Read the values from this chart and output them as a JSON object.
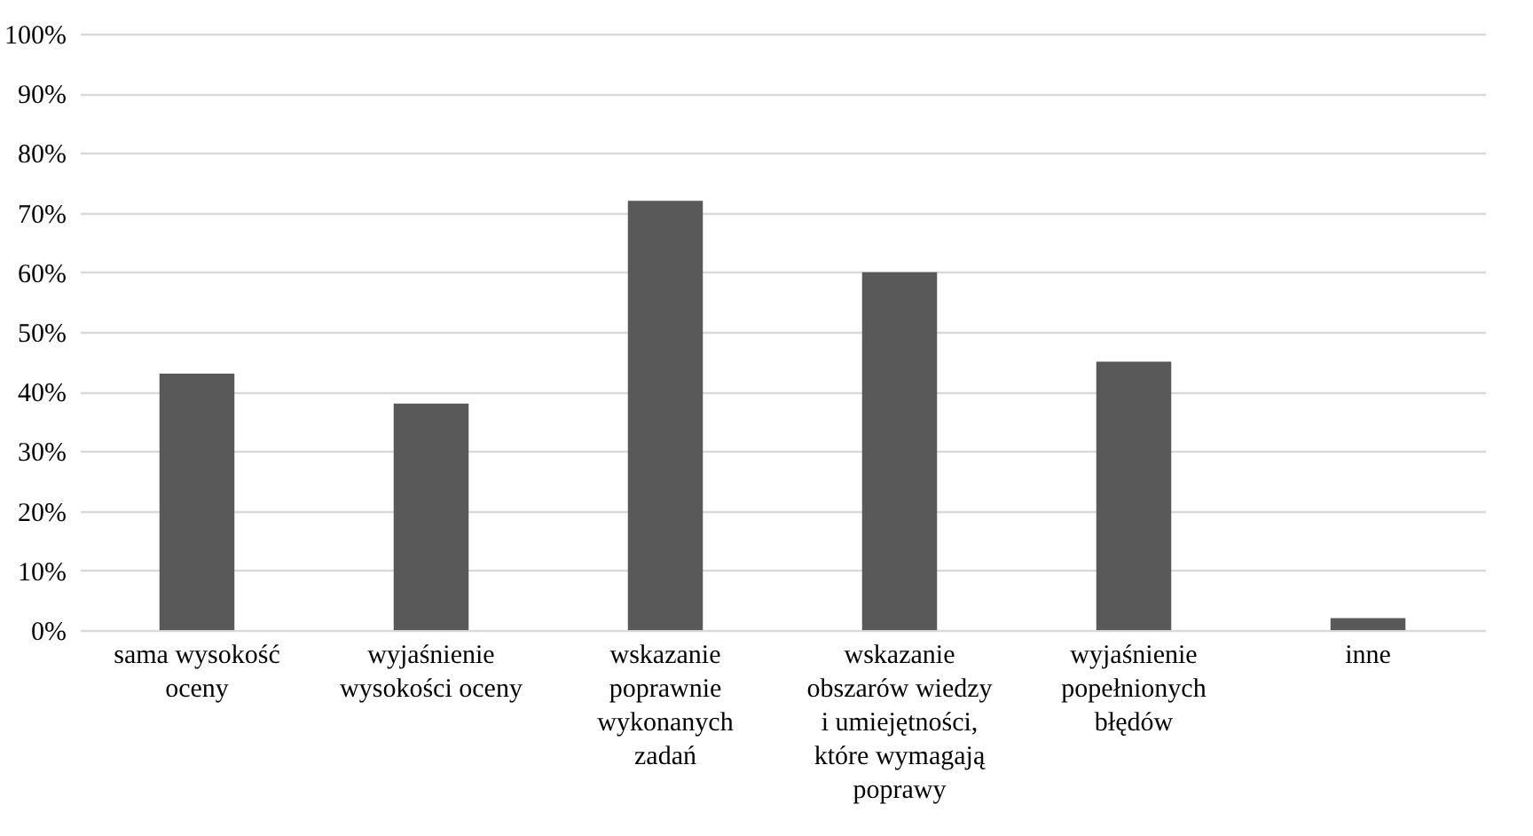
{
  "chart_data": {
    "type": "bar",
    "categories": [
      "sama wysokość oceny",
      "wyjaśnienie wysokości oceny",
      "wskazanie poprawnie wykonanych zadań",
      "wskazanie obszarów wiedzy i umiejętności, które wymagają poprawy",
      "wyjaśnienie popełnionych błędów",
      "inne"
    ],
    "values": [
      43,
      38,
      72,
      60,
      45,
      2
    ],
    "color": "#595959",
    "ylim": [
      0,
      100
    ],
    "yticks": [
      {
        "value": 0,
        "label": "0%"
      },
      {
        "value": 10,
        "label": "10%"
      },
      {
        "value": 20,
        "label": "20%"
      },
      {
        "value": 30,
        "label": "30%"
      },
      {
        "value": 40,
        "label": "40%"
      },
      {
        "value": 50,
        "label": "50%"
      },
      {
        "value": 60,
        "label": "60%"
      },
      {
        "value": 70,
        "label": "70%"
      },
      {
        "value": 80,
        "label": "80%"
      },
      {
        "value": 90,
        "label": "90%"
      },
      {
        "value": 100,
        "label": "100%"
      }
    ],
    "grid": "y"
  }
}
